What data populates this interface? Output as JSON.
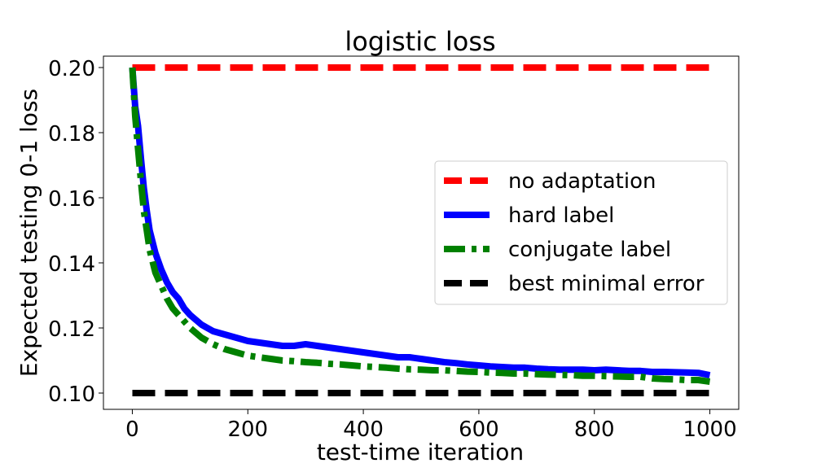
{
  "chart_data": {
    "type": "line",
    "title": "logistic loss",
    "xlabel": "test-time iteration",
    "ylabel": "Expected testing 0-1 loss",
    "xlim": [
      -50,
      1050
    ],
    "ylim": [
      0.095,
      0.2035
    ],
    "xticks": [
      0,
      200,
      400,
      600,
      800,
      1000
    ],
    "xtick_labels": [
      "0",
      "200",
      "400",
      "600",
      "800",
      "1000"
    ],
    "yticks": [
      0.1,
      0.12,
      0.14,
      0.16,
      0.18,
      0.2
    ],
    "ytick_labels": [
      "0.10",
      "0.12",
      "0.14",
      "0.16",
      "0.18",
      "0.20"
    ],
    "grid": false,
    "legend_position": "center-right",
    "series": [
      {
        "name": "no adaptation",
        "color": "#ff0000",
        "style": "dashed",
        "x": [
          0,
          1000
        ],
        "values": [
          0.2,
          0.2
        ]
      },
      {
        "name": "hard label",
        "color": "#0000ff",
        "style": "solid",
        "x": [
          0,
          5,
          10,
          15,
          20,
          25,
          30,
          40,
          50,
          60,
          70,
          80,
          90,
          100,
          120,
          140,
          160,
          180,
          200,
          220,
          240,
          260,
          280,
          300,
          320,
          340,
          360,
          380,
          400,
          420,
          440,
          460,
          480,
          500,
          520,
          540,
          560,
          580,
          600,
          620,
          640,
          660,
          680,
          700,
          720,
          740,
          760,
          780,
          800,
          820,
          840,
          860,
          880,
          900,
          920,
          940,
          960,
          980,
          1000
        ],
        "values": [
          0.2,
          0.188,
          0.182,
          0.172,
          0.163,
          0.156,
          0.15,
          0.143,
          0.138,
          0.134,
          0.131,
          0.129,
          0.126,
          0.124,
          0.121,
          0.119,
          0.118,
          0.117,
          0.116,
          0.1155,
          0.115,
          0.1145,
          0.1145,
          0.115,
          0.1145,
          0.114,
          0.1135,
          0.113,
          0.1125,
          0.112,
          0.1115,
          0.111,
          0.111,
          0.1105,
          0.11,
          0.1095,
          0.1092,
          0.1088,
          0.1085,
          0.1082,
          0.108,
          0.1078,
          0.1078,
          0.1075,
          0.1073,
          0.1072,
          0.1072,
          0.1072,
          0.107,
          0.1072,
          0.107,
          0.1068,
          0.1068,
          0.1065,
          0.1065,
          0.1064,
          0.1063,
          0.1062,
          0.1055
        ]
      },
      {
        "name": "conjugate label",
        "color": "#008000",
        "style": "dashdot",
        "x": [
          0,
          5,
          10,
          15,
          20,
          25,
          30,
          40,
          50,
          60,
          70,
          80,
          90,
          100,
          120,
          140,
          160,
          180,
          200,
          220,
          240,
          260,
          280,
          300,
          320,
          340,
          360,
          380,
          400,
          420,
          440,
          460,
          480,
          500,
          520,
          540,
          560,
          580,
          600,
          620,
          640,
          660,
          680,
          700,
          720,
          740,
          760,
          780,
          800,
          820,
          840,
          860,
          880,
          900,
          920,
          940,
          960,
          980,
          1000
        ],
        "values": [
          0.2,
          0.185,
          0.175,
          0.165,
          0.156,
          0.15,
          0.144,
          0.137,
          0.133,
          0.129,
          0.126,
          0.124,
          0.122,
          0.12,
          0.117,
          0.115,
          0.1135,
          0.1125,
          0.1115,
          0.111,
          0.1105,
          0.11,
          0.1098,
          0.1095,
          0.1093,
          0.109,
          0.1088,
          0.1085,
          0.1082,
          0.108,
          0.1078,
          0.1075,
          0.1073,
          0.1072,
          0.107,
          0.107,
          0.1068,
          0.1066,
          0.1065,
          0.1063,
          0.1062,
          0.106,
          0.106,
          0.1058,
          0.1057,
          0.1056,
          0.1055,
          0.1053,
          0.1053,
          0.1052,
          0.1051,
          0.105,
          0.105,
          0.1045,
          0.1043,
          0.1042,
          0.104,
          0.104,
          0.1035
        ]
      },
      {
        "name": "best minimal error",
        "color": "#000000",
        "style": "dashed",
        "x": [
          0,
          1000
        ],
        "values": [
          0.1,
          0.1
        ]
      }
    ]
  }
}
